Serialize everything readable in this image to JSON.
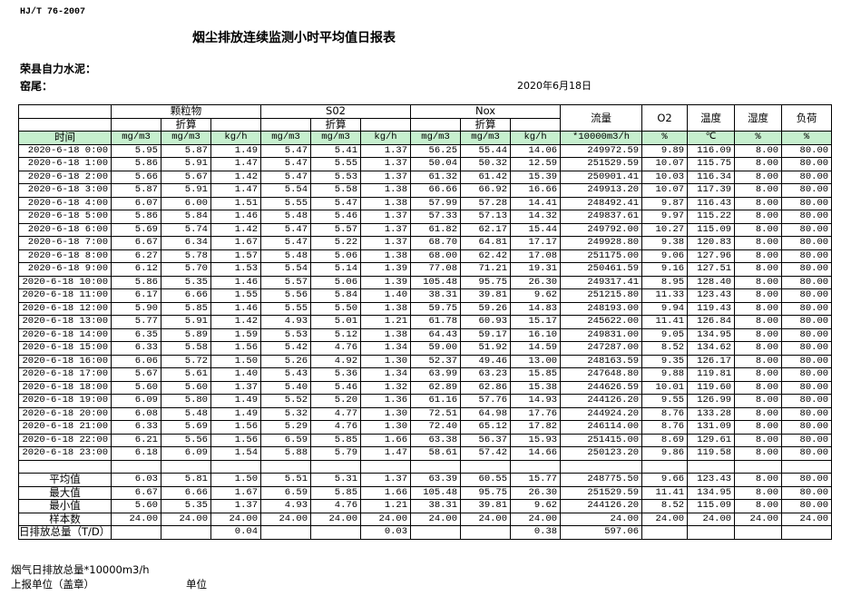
{
  "header": {
    "standard": "HJ/T  76-2007",
    "title": "烟尘排放连续监测小时平均值日报表",
    "company": "荣县自力水泥：",
    "unit": "窑尾：",
    "date": "2020年6月18日"
  },
  "table": {
    "groups": [
      "颗粒物",
      "S02",
      "Nox"
    ],
    "converted": "折算",
    "single_columns": [
      "流量",
      "O2",
      "温度",
      "湿度",
      "负荷"
    ],
    "time_label": "时间",
    "units": [
      "mg/m3",
      "mg/m3",
      "kg/h",
      "mg/m3",
      "mg/m3",
      "kg/h",
      "mg/m3",
      "mg/m3",
      "kg/h",
      "*10000m3/h",
      "%",
      "℃",
      "%",
      "%"
    ],
    "rows": [
      [
        "2020-6-18 0:00",
        "5.95",
        "5.87",
        "1.49",
        "5.47",
        "5.41",
        "1.37",
        "56.25",
        "55.44",
        "14.06",
        "249972.59",
        "9.89",
        "116.09",
        "8.00",
        "80.00"
      ],
      [
        "2020-6-18 1:00",
        "5.86",
        "5.91",
        "1.47",
        "5.47",
        "5.55",
        "1.37",
        "50.04",
        "50.32",
        "12.59",
        "251529.59",
        "10.07",
        "115.75",
        "8.00",
        "80.00"
      ],
      [
        "2020-6-18 2:00",
        "5.66",
        "5.67",
        "1.42",
        "5.47",
        "5.53",
        "1.37",
        "61.32",
        "61.42",
        "15.39",
        "250901.41",
        "10.03",
        "116.34",
        "8.00",
        "80.00"
      ],
      [
        "2020-6-18 3:00",
        "5.87",
        "5.91",
        "1.47",
        "5.54",
        "5.58",
        "1.38",
        "66.66",
        "66.92",
        "16.66",
        "249913.20",
        "10.07",
        "117.39",
        "8.00",
        "80.00"
      ],
      [
        "2020-6-18 4:00",
        "6.07",
        "6.00",
        "1.51",
        "5.55",
        "5.47",
        "1.38",
        "57.99",
        "57.28",
        "14.41",
        "248492.41",
        "9.87",
        "116.43",
        "8.00",
        "80.00"
      ],
      [
        "2020-6-18 5:00",
        "5.86",
        "5.84",
        "1.46",
        "5.48",
        "5.46",
        "1.37",
        "57.33",
        "57.13",
        "14.32",
        "249837.61",
        "9.97",
        "115.22",
        "8.00",
        "80.00"
      ],
      [
        "2020-6-18 6:00",
        "5.69",
        "5.74",
        "1.42",
        "5.47",
        "5.57",
        "1.37",
        "61.82",
        "62.17",
        "15.44",
        "249792.00",
        "10.27",
        "115.09",
        "8.00",
        "80.00"
      ],
      [
        "2020-6-18 7:00",
        "6.67",
        "6.34",
        "1.67",
        "5.47",
        "5.22",
        "1.37",
        "68.70",
        "64.81",
        "17.17",
        "249928.80",
        "9.38",
        "120.83",
        "8.00",
        "80.00"
      ],
      [
        "2020-6-18 8:00",
        "6.27",
        "5.78",
        "1.57",
        "5.48",
        "5.06",
        "1.38",
        "68.00",
        "62.42",
        "17.08",
        "251175.00",
        "9.06",
        "127.96",
        "8.00",
        "80.00"
      ],
      [
        "2020-6-18 9:00",
        "6.12",
        "5.70",
        "1.53",
        "5.54",
        "5.14",
        "1.39",
        "77.08",
        "71.21",
        "19.31",
        "250461.59",
        "9.16",
        "127.51",
        "8.00",
        "80.00"
      ],
      [
        "2020-6-18 10:00",
        "5.86",
        "5.35",
        "1.46",
        "5.57",
        "5.06",
        "1.39",
        "105.48",
        "95.75",
        "26.30",
        "249317.41",
        "8.95",
        "128.40",
        "8.00",
        "80.00"
      ],
      [
        "2020-6-18 11:00",
        "6.17",
        "6.66",
        "1.55",
        "5.56",
        "5.84",
        "1.40",
        "38.31",
        "39.81",
        "9.62",
        "251215.80",
        "11.33",
        "123.43",
        "8.00",
        "80.00"
      ],
      [
        "2020-6-18 12:00",
        "5.90",
        "5.85",
        "1.46",
        "5.55",
        "5.50",
        "1.38",
        "59.75",
        "59.26",
        "14.83",
        "248193.00",
        "9.94",
        "119.43",
        "8.00",
        "80.00"
      ],
      [
        "2020-6-18 13:00",
        "5.77",
        "5.91",
        "1.42",
        "4.93",
        "5.01",
        "1.21",
        "61.78",
        "60.93",
        "15.17",
        "245622.00",
        "11.41",
        "126.84",
        "8.00",
        "80.00"
      ],
      [
        "2020-6-18 14:00",
        "6.35",
        "5.89",
        "1.59",
        "5.53",
        "5.12",
        "1.38",
        "64.43",
        "59.17",
        "16.10",
        "249831.00",
        "9.05",
        "134.95",
        "8.00",
        "80.00"
      ],
      [
        "2020-6-18 15:00",
        "6.33",
        "5.58",
        "1.56",
        "5.42",
        "4.76",
        "1.34",
        "59.00",
        "51.92",
        "14.59",
        "247287.00",
        "8.52",
        "134.62",
        "8.00",
        "80.00"
      ],
      [
        "2020-6-18 16:00",
        "6.06",
        "5.72",
        "1.50",
        "5.26",
        "4.92",
        "1.30",
        "52.37",
        "49.46",
        "13.00",
        "248163.59",
        "9.35",
        "126.17",
        "8.00",
        "80.00"
      ],
      [
        "2020-6-18 17:00",
        "5.67",
        "5.61",
        "1.40",
        "5.43",
        "5.36",
        "1.34",
        "63.99",
        "63.23",
        "15.85",
        "247648.80",
        "9.88",
        "119.81",
        "8.00",
        "80.00"
      ],
      [
        "2020-6-18 18:00",
        "5.60",
        "5.60",
        "1.37",
        "5.40",
        "5.46",
        "1.32",
        "62.89",
        "62.86",
        "15.38",
        "244626.59",
        "10.01",
        "119.60",
        "8.00",
        "80.00"
      ],
      [
        "2020-6-18 19:00",
        "6.09",
        "5.80",
        "1.49",
        "5.52",
        "5.20",
        "1.36",
        "61.16",
        "57.76",
        "14.93",
        "244126.20",
        "9.55",
        "126.99",
        "8.00",
        "80.00"
      ],
      [
        "2020-6-18 20:00",
        "6.08",
        "5.48",
        "1.49",
        "5.32",
        "4.77",
        "1.30",
        "72.51",
        "64.98",
        "17.76",
        "244924.20",
        "8.76",
        "133.28",
        "8.00",
        "80.00"
      ],
      [
        "2020-6-18 21:00",
        "6.33",
        "5.69",
        "1.56",
        "5.29",
        "4.76",
        "1.30",
        "72.40",
        "65.12",
        "17.82",
        "246114.00",
        "8.76",
        "131.09",
        "8.00",
        "80.00"
      ],
      [
        "2020-6-18 22:00",
        "6.21",
        "5.56",
        "1.56",
        "6.59",
        "5.85",
        "1.66",
        "63.38",
        "56.37",
        "15.93",
        "251415.00",
        "8.69",
        "129.61",
        "8.00",
        "80.00"
      ],
      [
        "2020-6-18 23:00",
        "6.18",
        "6.09",
        "1.54",
        "5.88",
        "5.79",
        "1.47",
        "58.61",
        "57.42",
        "14.66",
        "250123.20",
        "9.86",
        "119.58",
        "8.00",
        "80.00"
      ]
    ],
    "summary": [
      [
        "平均值",
        "6.03",
        "5.81",
        "1.50",
        "5.51",
        "5.31",
        "1.37",
        "63.39",
        "60.55",
        "15.77",
        "248775.50",
        "9.66",
        "123.43",
        "8.00",
        "80.00"
      ],
      [
        "最大值",
        "6.67",
        "6.66",
        "1.67",
        "6.59",
        "5.85",
        "1.66",
        "105.48",
        "95.75",
        "26.30",
        "251529.59",
        "11.41",
        "134.95",
        "8.00",
        "80.00"
      ],
      [
        "最小值",
        "5.60",
        "5.35",
        "1.37",
        "4.93",
        "4.76",
        "1.21",
        "38.31",
        "39.81",
        "9.62",
        "244126.20",
        "8.52",
        "115.09",
        "8.00",
        "80.00"
      ],
      [
        "样本数",
        "24.00",
        "24.00",
        "24.00",
        "24.00",
        "24.00",
        "24.00",
        "24.00",
        "24.00",
        "24.00",
        "24.00",
        "24.00",
        "24.00",
        "24.00",
        "24.00"
      ]
    ],
    "daily_total": {
      "label": "日排放总量（T/D）",
      "pm_kgh": "0.04",
      "so2_kgh": "0.03",
      "nox_kgh": "0.38",
      "flow": "597.06"
    }
  },
  "footer": {
    "flue_gas": "烟气日排放总量*10000m3/h",
    "reporter": "上报单位（盖章）",
    "unit": "单位"
  }
}
